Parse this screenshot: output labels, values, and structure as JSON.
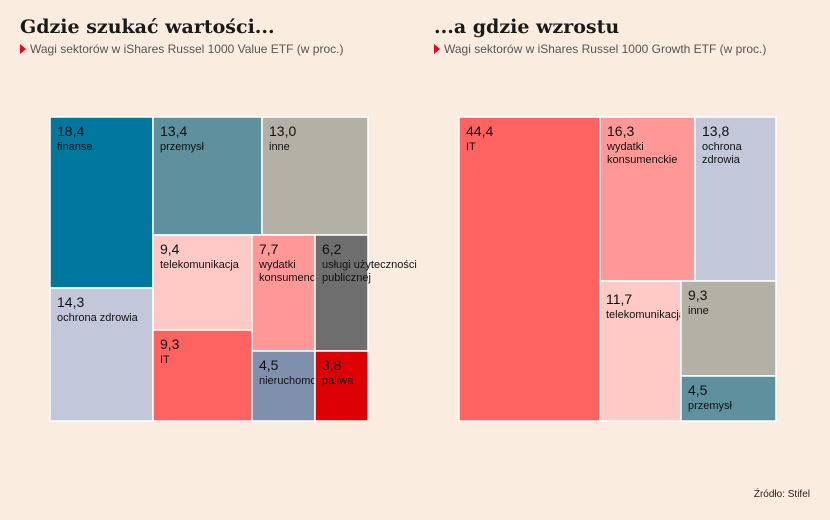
{
  "colors": {
    "teal": "#00779e",
    "steel": "#5f909e",
    "grey": "#b3b1a5",
    "pink": "#ffc9c5",
    "salmon": "#ff9897",
    "red": "#ff6361",
    "darkgrey": "#6e6e6e",
    "lightblue": "#c2c8da",
    "slate": "#7f8fae",
    "crimson": "#dd0004",
    "background": "#fbece0"
  },
  "left": {
    "title": "Gdzie szukać wartości...",
    "subtitle": "Wagi sektorów w iShares Russel 1000 Value ETF (w proc.)"
  },
  "right": {
    "title": "...a gdzie wzrostu",
    "subtitle": "Wagi sektorów w iShares Russel 1000 Growth ETF (w proc.)"
  },
  "source": "Źródło: Stifel",
  "chart_data": [
    {
      "type": "treemap",
      "title": "Gdzie szukać wartości...",
      "subtitle": "Wagi sektorów w iShares Russel 1000 Value ETF (w proc.)",
      "items": [
        {
          "label": "finanse",
          "value": 18.4,
          "value_text": "18,4",
          "color": "teal"
        },
        {
          "label": "ochrona zdrowia",
          "value": 14.3,
          "value_text": "14,3",
          "color": "lightblue"
        },
        {
          "label": "przemysł",
          "value": 13.4,
          "value_text": "13,4",
          "color": "steel"
        },
        {
          "label": "inne",
          "value": 13.0,
          "value_text": "13,0",
          "color": "grey"
        },
        {
          "label": "telekomunikacja",
          "value": 9.4,
          "value_text": "9,4",
          "color": "pink"
        },
        {
          "label": "IT",
          "value": 9.3,
          "value_text": "9,3",
          "color": "red"
        },
        {
          "label": "wydatki konsumenckie",
          "value": 7.7,
          "value_text": "7,7",
          "color": "salmon"
        },
        {
          "label": "usługi użyteczności publicznej",
          "value": 6.2,
          "value_text": "6,2",
          "color": "darkgrey"
        },
        {
          "label": "nieruchomości",
          "value": 4.5,
          "value_text": "4,5",
          "color": "slate"
        },
        {
          "label": "paliwa",
          "value": 3.8,
          "value_text": "3,8",
          "color": "crimson"
        }
      ]
    },
    {
      "type": "treemap",
      "title": "...a gdzie wzrostu",
      "subtitle": "Wagi sektorów w iShares Russel 1000 Growth ETF (w proc.)",
      "items": [
        {
          "label": "IT",
          "value": 44.4,
          "value_text": "44,4",
          "color": "red"
        },
        {
          "label": "wydatki konsumenckie",
          "value": 16.3,
          "value_text": "16,3",
          "color": "salmon"
        },
        {
          "label": "ochrona zdrowia",
          "value": 13.8,
          "value_text": "13,8",
          "color": "lightblue"
        },
        {
          "label": "telekomunikacja",
          "value": 11.7,
          "value_text": "11,7",
          "color": "pink"
        },
        {
          "label": "inne",
          "value": 9.3,
          "value_text": "9,3",
          "color": "grey"
        },
        {
          "label": "przemysł",
          "value": 4.5,
          "value_text": "4,5",
          "color": "steel"
        }
      ]
    }
  ]
}
